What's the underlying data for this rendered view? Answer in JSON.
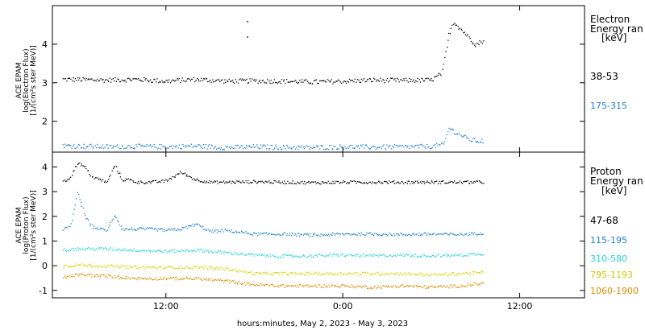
{
  "xaxis": {
    "title": "hours:minutes,  May  2, 2023 - May  3, 2023",
    "ticks": [
      {
        "t": 12,
        "label": "12:00"
      },
      {
        "t": 24,
        "label": "0:00"
      },
      {
        "t": 36,
        "label": "12:00"
      }
    ],
    "range_hours": [
      4.3,
      40.4
    ]
  },
  "chart_data": [
    {
      "type": "scatter",
      "panel": "electron",
      "ylabel": [
        "ACE EPAM",
        "log(Electron Flux)",
        "[1/(cm²s ster MeV)]"
      ],
      "ylim": [
        1.2,
        5.0
      ],
      "yticks": [
        2,
        3,
        4
      ],
      "legend_title": [
        "Electron",
        "Energy ran",
        "[keV]"
      ],
      "series": [
        {
          "name": "38-53",
          "color": "#000000",
          "x": [
            5.0,
            8.0,
            10.0,
            12.0,
            14.0,
            16.2,
            18.0,
            20.0,
            22.0,
            24.0,
            26.0,
            28.0,
            30.0,
            30.7,
            31.2,
            31.5,
            32.0,
            32.5,
            33.0,
            33.5
          ],
          "y": [
            3.1,
            3.08,
            3.1,
            3.05,
            3.1,
            3.05,
            3.06,
            3.05,
            3.03,
            3.05,
            3.08,
            3.07,
            3.08,
            3.25,
            4.3,
            4.6,
            4.4,
            4.2,
            4.0,
            4.1
          ],
          "outliers": [
            {
              "x": 17.5,
              "y": 4.6
            },
            {
              "x": 17.5,
              "y": 4.2
            }
          ]
        },
        {
          "name": "175-315",
          "color": "#1e7fd0",
          "x": [
            5.0,
            8.0,
            10.0,
            12.0,
            14.0,
            16.0,
            18.0,
            20.0,
            22.0,
            24.0,
            26.0,
            28.0,
            30.0,
            30.8,
            31.2,
            31.5,
            32.0,
            32.5,
            33.0,
            33.5
          ],
          "y": [
            1.38,
            1.35,
            1.36,
            1.35,
            1.37,
            1.33,
            1.35,
            1.34,
            1.33,
            1.35,
            1.34,
            1.35,
            1.36,
            1.4,
            1.85,
            1.75,
            1.65,
            1.55,
            1.5,
            1.5
          ]
        }
      ]
    },
    {
      "type": "scatter",
      "panel": "proton",
      "ylabel": [
        "ACE EPAM",
        "log(Proton Flux)",
        "[1/(cm²s ster MeV)]"
      ],
      "ylim": [
        -1.3,
        4.6
      ],
      "yticks": [
        -1,
        0,
        1,
        2,
        3,
        4
      ],
      "legend_title": [
        "Proton",
        "Energy ran",
        "[keV]"
      ],
      "series": [
        {
          "name": "47-68",
          "color": "#000000",
          "x": [
            5.0,
            5.5,
            6.0,
            6.5,
            7.0,
            7.5,
            8.0,
            8.5,
            9.0,
            9.5,
            10.0,
            11.0,
            12.0,
            13.0,
            14.0,
            15.0,
            16.0,
            18.0,
            20.0,
            22.0,
            24.0,
            26.0,
            28.0,
            30.0,
            32.0,
            33.5
          ],
          "y": [
            3.4,
            3.6,
            4.2,
            4.0,
            3.6,
            3.5,
            3.4,
            4.1,
            3.5,
            3.5,
            3.4,
            3.4,
            3.45,
            3.8,
            3.5,
            3.4,
            3.4,
            3.42,
            3.4,
            3.38,
            3.4,
            3.4,
            3.4,
            3.4,
            3.4,
            3.4
          ]
        },
        {
          "name": "115-195",
          "color": "#1e7fd0",
          "x": [
            5.0,
            5.5,
            6.0,
            6.5,
            7.0,
            7.5,
            8.0,
            8.5,
            9.0,
            10.0,
            11.0,
            12.0,
            13.0,
            14.0,
            15.0,
            16.0,
            18.0,
            20.0,
            22.0,
            24.0,
            26.0,
            28.0,
            30.0,
            32.0,
            33.5
          ],
          "y": [
            1.5,
            1.6,
            3.0,
            2.0,
            1.6,
            1.5,
            1.45,
            2.1,
            1.5,
            1.5,
            1.5,
            1.45,
            1.5,
            1.7,
            1.4,
            1.45,
            1.3,
            1.3,
            1.25,
            1.3,
            1.3,
            1.28,
            1.3,
            1.28,
            1.35
          ]
        },
        {
          "name": "310-580",
          "color": "#24d4d4",
          "x": [
            5.0,
            6.0,
            8.0,
            10.0,
            12.0,
            14.0,
            16.0,
            18.0,
            20.0,
            22.0,
            24.0,
            26.0,
            28.0,
            30.0,
            32.0,
            33.5
          ],
          "y": [
            0.65,
            0.7,
            0.7,
            0.65,
            0.6,
            0.65,
            0.55,
            0.45,
            0.4,
            0.42,
            0.45,
            0.42,
            0.45,
            0.42,
            0.45,
            0.5
          ]
        },
        {
          "name": "795-1193",
          "color": "#d4d400",
          "x": [
            5.0,
            6.0,
            8.0,
            10.0,
            12.0,
            14.0,
            16.0,
            18.0,
            20.0,
            22.0,
            24.0,
            26.0,
            28.0,
            30.0,
            32.0,
            33.5
          ],
          "y": [
            0.0,
            0.05,
            0.0,
            -0.05,
            -0.05,
            -0.05,
            -0.1,
            -0.3,
            -0.3,
            -0.3,
            -0.3,
            -0.3,
            -0.3,
            -0.35,
            -0.3,
            -0.25
          ]
        },
        {
          "name": "1060-1900",
          "color": "#e08a00",
          "x": [
            5.0,
            6.0,
            8.0,
            10.0,
            12.0,
            14.0,
            16.0,
            18.0,
            20.0,
            22.0,
            24.0,
            26.0,
            28.0,
            30.0,
            32.0,
            33.5
          ],
          "y": [
            -0.45,
            -0.35,
            -0.4,
            -0.5,
            -0.5,
            -0.5,
            -0.6,
            -0.75,
            -0.8,
            -0.8,
            -0.8,
            -0.85,
            -0.8,
            -0.85,
            -0.8,
            -0.7
          ]
        }
      ]
    }
  ]
}
